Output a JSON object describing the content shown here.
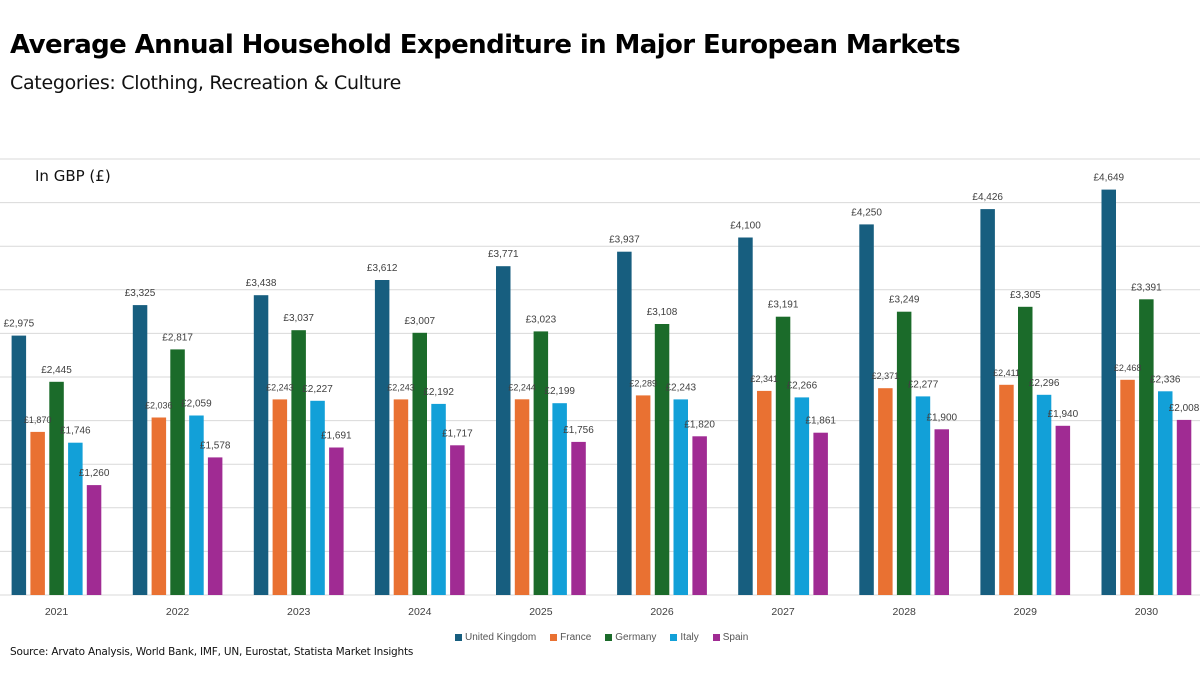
{
  "header": {
    "title": "Average Annual Household Expenditure in Major European Markets",
    "subtitle": "Categories: Clothing, Recreation & Culture",
    "unit_label": "In GBP (£)"
  },
  "footer": {
    "source": "Source: Arvato Analysis, World Bank, IMF, UN, Eurostat, Statista Market Insights"
  },
  "chart_data": {
    "type": "bar",
    "title": "Average Annual Household Expenditure in Major European Markets",
    "subtitle": "Categories: Clothing, Recreation & Culture",
    "xlabel": "",
    "ylabel": "In GBP (£)",
    "ylim": [
      0,
      5000
    ],
    "y_gridline_step": 500,
    "grid": true,
    "legend_position": "bottom",
    "value_prefix": "£",
    "categories": [
      "2021",
      "2022",
      "2023",
      "2024",
      "2025",
      "2026",
      "2027",
      "2028",
      "2029",
      "2030"
    ],
    "series": [
      {
        "name": "United Kingdom",
        "color": "#175e7f",
        "values": [
          2975,
          3325,
          3438,
          3612,
          3771,
          3937,
          4100,
          4250,
          4426,
          4649
        ]
      },
      {
        "name": "France",
        "color": "#e97132",
        "values": [
          1870,
          2036,
          2243,
          2243,
          2244,
          2289,
          2341,
          2371,
          2411,
          2468
        ]
      },
      {
        "name": "Germany",
        "color": "#1b6b2a",
        "values": [
          2445,
          2817,
          3037,
          3007,
          3023,
          3108,
          3191,
          3249,
          3305,
          3391
        ]
      },
      {
        "name": "Italy",
        "color": "#12a0d8",
        "values": [
          1746,
          2059,
          2227,
          2192,
          2199,
          2243,
          2266,
          2277,
          2296,
          2336
        ]
      },
      {
        "name": "Spain",
        "color": "#a02b93",
        "values": [
          1260,
          1578,
          1691,
          1717,
          1756,
          1820,
          1861,
          1900,
          1940,
          2008
        ]
      }
    ]
  }
}
